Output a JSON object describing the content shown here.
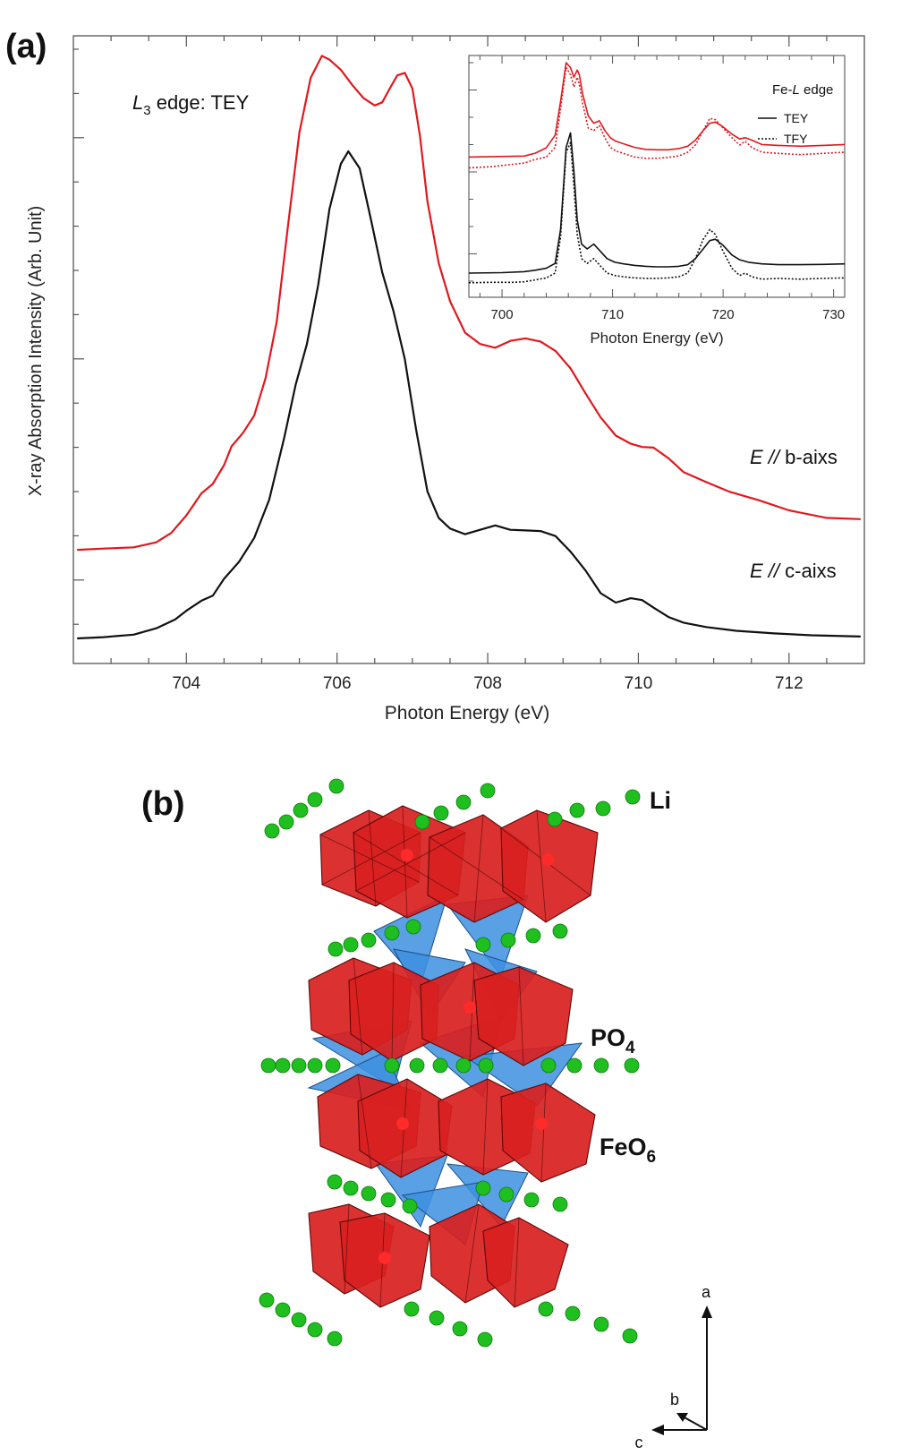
{
  "panel_a": {
    "label": "(a)",
    "chart_data": [
      {
        "type": "line",
        "annotation": "L3 edge: TEY",
        "annotation_parts": [
          "L",
          "3",
          " edge: TEY"
        ],
        "xlabel": "Photon Energy (eV)",
        "ylabel": "X-ray Absorption Intensity (Arb. Unit)",
        "xlim": [
          702.5,
          713.0
        ],
        "ylim": [
          0,
          100
        ],
        "xticks": [
          "704",
          "706",
          "708",
          "710",
          "712"
        ],
        "grid": false,
        "series": [
          {
            "name": "E // b-aixs",
            "name_parts": [
              "E",
              " // ",
              "b-aixs"
            ],
            "color": "#e0191e",
            "x": [
              702.55,
              702.9,
              703.3,
              703.6,
              703.8,
              704.0,
              704.2,
              704.35,
              704.5,
              704.6,
              704.75,
              704.9,
              705.05,
              705.2,
              705.35,
              705.5,
              705.65,
              705.8,
              705.9,
              706.05,
              706.2,
              706.35,
              706.5,
              706.6,
              706.7,
              706.8,
              706.9,
              707.0,
              707.1,
              707.2,
              707.35,
              707.5,
              707.7,
              707.9,
              708.1,
              708.3,
              708.5,
              708.7,
              708.9,
              709.1,
              709.3,
              709.5,
              709.7,
              709.9,
              710.05,
              710.2,
              710.4,
              710.6,
              710.9,
              711.2,
              711.6,
              712.0,
              712.5,
              712.95
            ],
            "y": [
              18.1,
              18.3,
              18.5,
              19.3,
              20.8,
              23.6,
              27.1,
              28.6,
              31.6,
              34.6,
              36.7,
              39.5,
              45.4,
              54.5,
              69.8,
              84.6,
              93.3,
              96.8,
              96.2,
              94.6,
              92.2,
              90.1,
              88.9,
              89.4,
              91.6,
              93.7,
              94.1,
              91.6,
              84.1,
              73.6,
              63.8,
              57.7,
              52.7,
              50.9,
              50.3,
              51.4,
              51.8,
              51.3,
              49.8,
              47.0,
              43.0,
              39.2,
              36.3,
              35.0,
              34.5,
              34.4,
              32.7,
              30.5,
              28.9,
              27.4,
              26.0,
              24.4,
              23.2,
              23.0
            ]
          },
          {
            "name": "E // c-aixs",
            "name_parts": [
              "E",
              " // ",
              "c-aixs"
            ],
            "color": "#111111",
            "x": [
              702.55,
              702.9,
              703.3,
              703.6,
              703.85,
              704.0,
              704.2,
              704.35,
              704.5,
              704.7,
              704.9,
              705.1,
              705.3,
              705.45,
              705.6,
              705.75,
              705.9,
              706.05,
              706.15,
              706.3,
              706.45,
              706.6,
              706.75,
              706.9,
              707.05,
              707.2,
              707.35,
              707.5,
              707.7,
              707.9,
              708.1,
              708.3,
              708.5,
              708.7,
              708.9,
              709.1,
              709.3,
              709.5,
              709.7,
              709.9,
              710.05,
              710.2,
              710.4,
              710.6,
              710.9,
              711.3,
              711.8,
              712.3,
              712.95
            ],
            "y": [
              4.0,
              4.2,
              4.6,
              5.6,
              7.0,
              8.4,
              10.0,
              10.8,
              13.5,
              16.2,
              20.0,
              26.1,
              36.0,
              44.4,
              50.9,
              60.3,
              72.4,
              79.6,
              81.6,
              78.9,
              70.7,
              62.3,
              56.1,
              48.5,
              37.2,
              27.4,
              23.2,
              21.5,
              20.6,
              21.3,
              22.0,
              21.3,
              21.2,
              21.1,
              20.3,
              17.8,
              14.8,
              11.2,
              9.7,
              10.4,
              10.1,
              8.9,
              7.4,
              6.5,
              5.8,
              5.2,
              4.8,
              4.5,
              4.3
            ]
          }
        ]
      },
      {
        "type": "line",
        "title": "Fe-L edge",
        "title_parts": [
          "Fe-",
          "L",
          " edge"
        ],
        "xlabel": "Photon Energy (eV)",
        "xlim": [
          697,
          731
        ],
        "ylim": [
          0,
          100
        ],
        "xticks": [
          "700",
          "710",
          "720",
          "730"
        ],
        "legend": [
          "TEY",
          "TFY"
        ],
        "legend_placement": "top-right",
        "series": [
          {
            "group": "b-axis",
            "mode": "TEY",
            "color": "#e0191e",
            "dash": false,
            "x": [
              697,
              702,
              703,
              704,
              704.8,
              705.3,
              705.8,
              706.2,
              706.5,
              706.8,
              707.0,
              707.3,
              707.8,
              708.3,
              708.8,
              709.3,
              709.8,
              710.3,
              711,
              712,
              713,
              714,
              715,
              716,
              716.8,
              717.5,
              718.2,
              718.8,
              719.3,
              720,
              720.8,
              721.5,
              722,
              722.6,
              723.5,
              725,
              727,
              729,
              731
            ],
            "y": [
              58.0,
              58.4,
              59.6,
              61.8,
              67.0,
              81.0,
              97.0,
              95.0,
              91.0,
              94.0,
              92.0,
              84.0,
              75.0,
              72.0,
              73.0,
              69.0,
              66.0,
              64.5,
              63.5,
              62.0,
              61.2,
              61.0,
              61.0,
              61.5,
              62.5,
              65.0,
              69.0,
              72.0,
              72.5,
              70.5,
              67.5,
              65.5,
              66.0,
              65.0,
              63.2,
              62.8,
              62.5,
              62.8,
              63.2
            ]
          },
          {
            "group": "b-axis",
            "mode": "TFY",
            "color": "#e0191e",
            "dash": true,
            "x": [
              697,
              699,
              701,
              702,
              703,
              704,
              704.8,
              705.3,
              705.8,
              706.2,
              706.5,
              706.8,
              707.0,
              707.3,
              707.8,
              708.3,
              708.8,
              709.3,
              709.8,
              710.3,
              711,
              712,
              713,
              714,
              715,
              716,
              716.8,
              717.5,
              718.2,
              718.8,
              719.3,
              720,
              720.8,
              721.5,
              722,
              722.6,
              723.5,
              725,
              727,
              729,
              731
            ],
            "y": [
              53.5,
              54.0,
              55.0,
              55.5,
              57.0,
              58.0,
              62.0,
              78.0,
              95.0,
              92.0,
              87.0,
              91.0,
              88.0,
              80.0,
              70.0,
              69.0,
              71.0,
              66.0,
              62.0,
              60.5,
              59.5,
              58.0,
              57.5,
              57.5,
              57.8,
              58.5,
              60.0,
              63.0,
              69.0,
              74.0,
              73.5,
              70.0,
              66.0,
              63.0,
              64.5,
              62.0,
              60.0,
              59.5,
              59.0,
              59.5,
              60.0
            ]
          },
          {
            "group": "c-axis",
            "mode": "TEY",
            "color": "#111111",
            "dash": false,
            "x": [
              697,
              700,
              702,
              703,
              704,
              704.8,
              705.3,
              705.8,
              706.2,
              706.5,
              706.8,
              707.2,
              707.7,
              708.3,
              708.9,
              709.5,
              710.2,
              711,
              712,
              713,
              714,
              715,
              716,
              716.8,
              717.5,
              718.2,
              718.8,
              719.3,
              720,
              720.8,
              721.5,
              722.3,
              723.5,
              725,
              727,
              729,
              731
            ],
            "y": [
              10.0,
              10.2,
              10.6,
              11.2,
              12.0,
              14.0,
              28.0,
              62.0,
              68.0,
              52.0,
              32.0,
              22.0,
              20.0,
              22.0,
              19.0,
              16.0,
              14.5,
              13.8,
              13.2,
              12.8,
              12.6,
              12.6,
              12.8,
              13.5,
              16.0,
              20.0,
              23.5,
              24.0,
              21.5,
              17.5,
              15.5,
              14.5,
              13.8,
              13.5,
              13.5,
              13.6,
              13.8
            ]
          },
          {
            "group": "c-axis",
            "mode": "TFY",
            "color": "#111111",
            "dash": true,
            "x": [
              697,
              699,
              701,
              702,
              703,
              704,
              704.8,
              705.3,
              705.8,
              706.2,
              706.5,
              706.8,
              707.2,
              707.7,
              708.3,
              708.9,
              709.5,
              710.2,
              711,
              712,
              713,
              714,
              715,
              716,
              716.8,
              717.5,
              718.2,
              718.8,
              719.3,
              720,
              720.8,
              721.5,
              722,
              722.6,
              723.5,
              725,
              727,
              729,
              731
            ],
            "y": [
              6.0,
              6.2,
              6.2,
              6.4,
              7.2,
              8.0,
              10.0,
              25.0,
              60.0,
              64.0,
              46.0,
              26.0,
              16.0,
              14.0,
              16.0,
              13.0,
              10.0,
              9.0,
              8.5,
              8.0,
              7.8,
              7.8,
              8.0,
              8.5,
              10.0,
              16.0,
              24.0,
              28.0,
              26.0,
              19.0,
              12.0,
              9.0,
              10.0,
              8.5,
              7.5,
              7.8,
              7.5,
              7.8,
              8.0
            ]
          }
        ]
      }
    ]
  },
  "panel_b": {
    "label": "(b)",
    "labels": {
      "li": "Li",
      "po4": [
        "PO",
        "4"
      ],
      "feo6": [
        "FeO",
        "6"
      ]
    },
    "colors": {
      "li": "#1fbf1f",
      "feo6": "#d92020",
      "po4": "#3d8fe0"
    },
    "axes": {
      "a": "a",
      "b": "b",
      "c": "c"
    }
  }
}
